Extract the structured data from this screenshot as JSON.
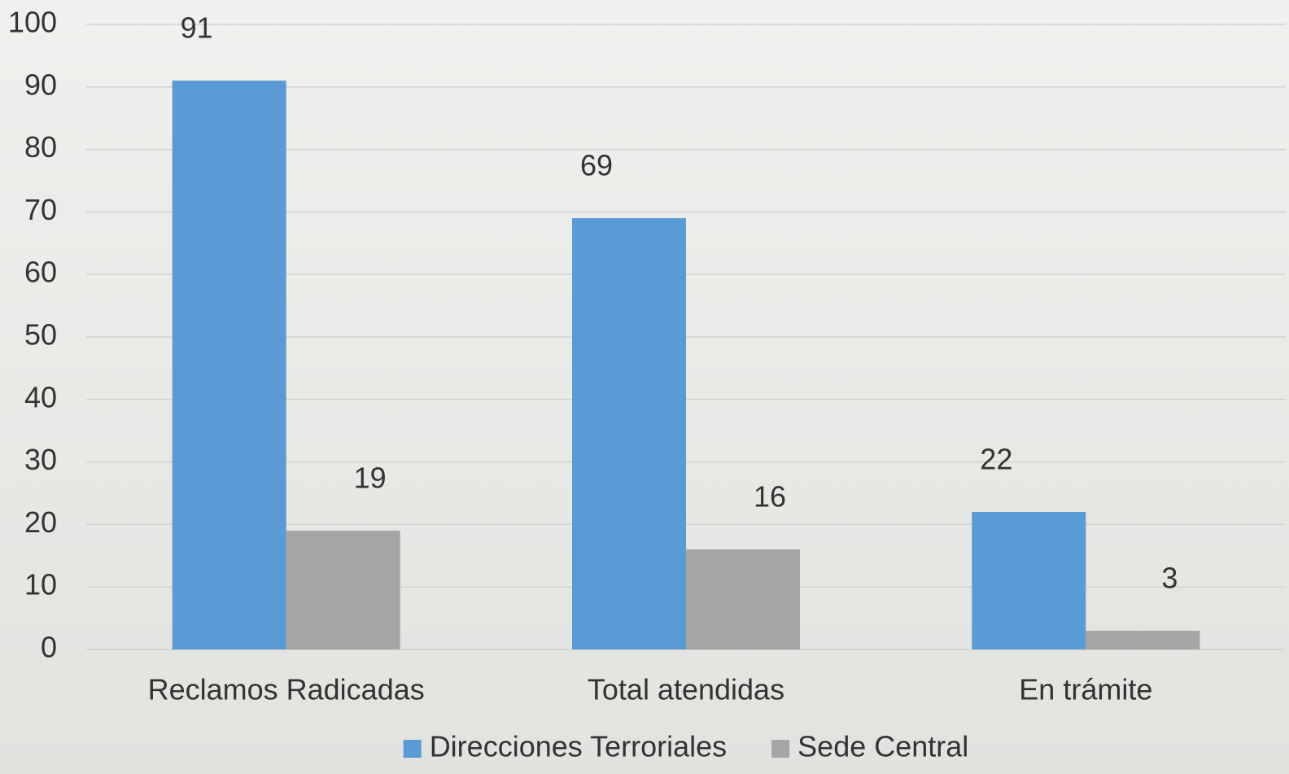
{
  "chart_data": {
    "type": "bar",
    "categories": [
      "Reclamos Radicadas",
      "Total atendidas",
      "En trámite"
    ],
    "series": [
      {
        "name": "Direcciones Terroriales",
        "color": "#5b9bd5",
        "values": [
          91,
          69,
          22
        ]
      },
      {
        "name": "Sede Central",
        "color": "#a5a5a5",
        "values": [
          19,
          16,
          3
        ]
      }
    ],
    "ylim": [
      0,
      100
    ],
    "yticks": [
      0,
      10,
      20,
      30,
      40,
      50,
      60,
      70,
      80,
      90,
      100
    ],
    "grid": true,
    "legend": "bottom"
  }
}
